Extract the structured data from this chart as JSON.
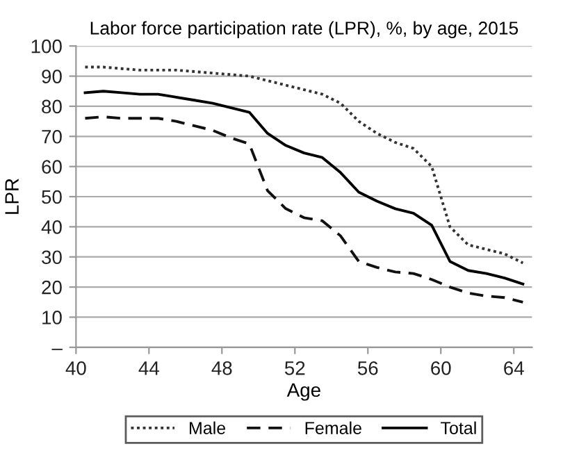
{
  "chart_data": {
    "type": "line",
    "title": "Labor force participation rate (LPR), %, by age, 2015",
    "xlabel": "Age",
    "ylabel": "LPR",
    "x": [
      40.5,
      41.5,
      42.5,
      43.5,
      44.5,
      45.5,
      46.5,
      47.5,
      48.5,
      49.5,
      50.5,
      51.5,
      52.5,
      53.5,
      54.5,
      55.5,
      56.5,
      57.5,
      58.5,
      59.5,
      60.5,
      61.5,
      62.5,
      63.5,
      64.5
    ],
    "series": [
      {
        "name": "Male",
        "color": "#333333",
        "line_style": "dotted",
        "values": [
          93,
          93,
          92.5,
          92,
          92,
          92,
          91.5,
          91,
          90.5,
          90,
          88.5,
          87,
          85.5,
          84,
          81,
          75,
          71,
          68,
          66,
          60,
          40,
          34,
          32.5,
          31,
          28
        ]
      },
      {
        "name": "Female",
        "color": "#111111",
        "line_style": "dashed",
        "values": [
          76,
          76.5,
          76,
          76,
          76,
          75,
          73.5,
          72,
          69.5,
          67.5,
          52,
          46,
          43,
          42,
          37,
          28.5,
          26.5,
          25,
          24.5,
          22.5,
          20,
          18,
          17,
          16.5,
          15
        ]
      },
      {
        "name": "Total",
        "color": "#000000",
        "line_style": "solid",
        "values": [
          84.5,
          85,
          84.5,
          84,
          84,
          83,
          82,
          81,
          79.5,
          78,
          71,
          67,
          64.5,
          63,
          58,
          51.5,
          48.5,
          46,
          44.5,
          40.5,
          28.5,
          25.5,
          24.5,
          23,
          21
        ]
      }
    ],
    "xlim": [
      40,
      65
    ],
    "xticks": [
      40,
      44,
      48,
      52,
      56,
      60,
      64
    ],
    "ylim": [
      0,
      100
    ],
    "yticks": [
      {
        "value": 0,
        "label": "–"
      },
      10,
      20,
      30,
      40,
      50,
      60,
      70,
      80,
      90,
      100
    ],
    "grid": "y",
    "legend": "bottom",
    "marker": "none"
  }
}
